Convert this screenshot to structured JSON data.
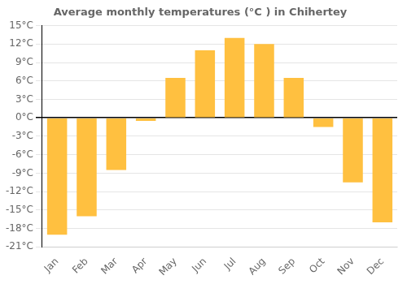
{
  "chart_data": {
    "type": "bar",
    "title": "Average monthly temperatures (°C ) in Chihertey",
    "categories": [
      "Jan",
      "Feb",
      "Mar",
      "Apr",
      "May",
      "Jun",
      "Jul",
      "Aug",
      "Sep",
      "Oct",
      "Nov",
      "Dec"
    ],
    "values": [
      -19,
      -16,
      -8.5,
      -0.5,
      6.5,
      11,
      13,
      12,
      6.5,
      -1.5,
      -10.5,
      -17
    ],
    "color": "#FFC040",
    "ylim": [
      -21,
      15
    ],
    "yticks": [
      {
        "value": -21,
        "label": "-21°C"
      },
      {
        "value": -18,
        "label": "-18°C"
      },
      {
        "value": -15,
        "label": "-15°C"
      },
      {
        "value": -12,
        "label": "-12°C"
      },
      {
        "value": -9,
        "label": "-9°C"
      },
      {
        "value": -6,
        "label": "-6°C"
      },
      {
        "value": -3,
        "label": "-3°C"
      },
      {
        "value": 0,
        "label": "0°C"
      },
      {
        "value": 3,
        "label": "3°C"
      },
      {
        "value": 6,
        "label": "6°C"
      },
      {
        "value": 9,
        "label": "9°C"
      },
      {
        "value": 12,
        "label": "12°C"
      },
      {
        "value": 15,
        "label": "15°C"
      }
    ],
    "grid": true
  }
}
